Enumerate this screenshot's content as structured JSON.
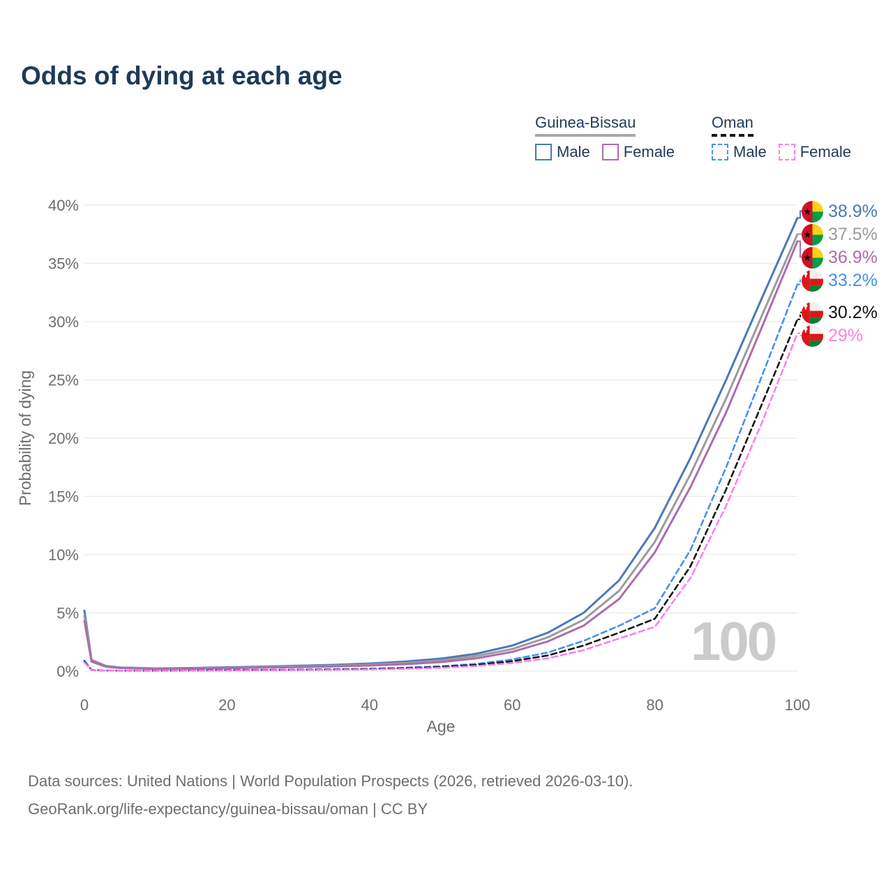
{
  "title": "Odds of dying at each age",
  "watermark": "100",
  "legend": {
    "groups": [
      {
        "name": "Guinea-Bissau",
        "line_style": "solid",
        "items": [
          {
            "label": "Male"
          },
          {
            "label": "Female"
          }
        ]
      },
      {
        "name": "Oman",
        "line_style": "dashed",
        "items": [
          {
            "label": "Male"
          },
          {
            "label": "Female"
          }
        ]
      }
    ]
  },
  "footer": {
    "line1": "Data sources: United Nations | World Population Prospects (2026, retrieved 2026-03-10).",
    "line2": "GeoRank.org/life-expectancy/guinea-bissau/oman | CC BY"
  },
  "chart_data": {
    "type": "line",
    "title": "Odds of dying at each age",
    "xlabel": "Age",
    "ylabel": "Probability of dying",
    "xlim": [
      0,
      100
    ],
    "ylim": [
      0,
      40
    ],
    "x_ticks": [
      0,
      20,
      40,
      60,
      80,
      100
    ],
    "y_tick_values": [
      0,
      5,
      10,
      15,
      20,
      25,
      30,
      35,
      40
    ],
    "y_tick_labels": [
      "0%",
      "5%",
      "10%",
      "15%",
      "20%",
      "25%",
      "30%",
      "35%",
      "40%"
    ],
    "grid": "horizontal",
    "legend_position": "top-right",
    "x": [
      0,
      1,
      3,
      5,
      10,
      15,
      20,
      25,
      30,
      35,
      40,
      45,
      50,
      55,
      60,
      65,
      70,
      75,
      80,
      85,
      90,
      95,
      100
    ],
    "series": [
      {
        "name": "Guinea-Bissau Male",
        "country": "Guinea-Bissau",
        "sex": "Male",
        "color": "#4a7ab8",
        "dash": "solid",
        "flag": "guinea-bissau",
        "end_label": "38.9%",
        "end_value": 38.9,
        "values": [
          5.2,
          0.95,
          0.45,
          0.32,
          0.24,
          0.27,
          0.33,
          0.39,
          0.46,
          0.54,
          0.65,
          0.82,
          1.08,
          1.5,
          2.2,
          3.3,
          5.0,
          7.8,
          12.3,
          18.3,
          25.0,
          32.0,
          38.9
        ]
      },
      {
        "name": "Guinea-Bissau Both sexes",
        "country": "Guinea-Bissau",
        "sex": "Both sexes",
        "color": "#9b9b9b",
        "dash": "solid",
        "flag": "guinea-bissau",
        "end_label": "37.5%",
        "end_value": 37.5,
        "values": [
          4.75,
          0.88,
          0.42,
          0.3,
          0.22,
          0.24,
          0.29,
          0.34,
          0.4,
          0.47,
          0.56,
          0.7,
          0.92,
          1.3,
          1.9,
          2.9,
          4.4,
          6.9,
          11.1,
          16.9,
          23.4,
          30.5,
          37.5
        ]
      },
      {
        "name": "Guinea-Bissau Female",
        "country": "Guinea-Bissau",
        "sex": "Female",
        "color": "#ae6cae",
        "dash": "solid",
        "flag": "guinea-bissau",
        "end_label": "36.9%",
        "end_value": 36.9,
        "values": [
          4.3,
          0.82,
          0.38,
          0.27,
          0.2,
          0.21,
          0.25,
          0.3,
          0.35,
          0.41,
          0.48,
          0.6,
          0.78,
          1.1,
          1.65,
          2.55,
          3.9,
          6.2,
          10.2,
          15.8,
          22.2,
          29.5,
          36.9
        ]
      },
      {
        "name": "Oman Male",
        "country": "Oman",
        "sex": "Male",
        "color": "#4590f2",
        "dash": "dashed",
        "flag": "oman",
        "end_label": "33.2%",
        "end_value": 33.2,
        "values": [
          0.9,
          0.1,
          0.06,
          0.05,
          0.04,
          0.06,
          0.09,
          0.11,
          0.13,
          0.16,
          0.21,
          0.29,
          0.42,
          0.63,
          1.0,
          1.6,
          2.6,
          3.9,
          5.4,
          10.4,
          17.5,
          25.3,
          33.2
        ]
      },
      {
        "name": "Oman Both sexes",
        "country": "Oman",
        "sex": "Both sexes",
        "color": "#141414",
        "dash": "dashed",
        "flag": "oman",
        "end_label": "30.2%",
        "end_value": 30.2,
        "values": [
          0.82,
          0.09,
          0.05,
          0.04,
          0.035,
          0.05,
          0.07,
          0.09,
          0.11,
          0.14,
          0.18,
          0.25,
          0.36,
          0.54,
          0.85,
          1.35,
          2.2,
          3.3,
          4.5,
          9.0,
          15.6,
          22.9,
          30.2
        ]
      },
      {
        "name": "Oman Female",
        "country": "Oman",
        "sex": "Female",
        "color": "#ff7fe8",
        "dash": "dashed",
        "flag": "oman",
        "end_label": "29%",
        "end_value": 29.0,
        "values": [
          0.75,
          0.08,
          0.05,
          0.04,
          0.03,
          0.04,
          0.05,
          0.07,
          0.09,
          0.11,
          0.15,
          0.2,
          0.29,
          0.44,
          0.7,
          1.1,
          1.8,
          2.8,
          3.8,
          8.0,
          14.2,
          21.3,
          29.0
        ]
      }
    ]
  },
  "colors": {
    "title_text": "#1e3a5a",
    "axis_text": "#6d6d6d",
    "gridline": "#eaeaea",
    "watermark": "#cbcbcb",
    "footer_text": "#6e6e6e",
    "gw_underline": "#a8a8a8",
    "oman_underline": "#161616"
  }
}
